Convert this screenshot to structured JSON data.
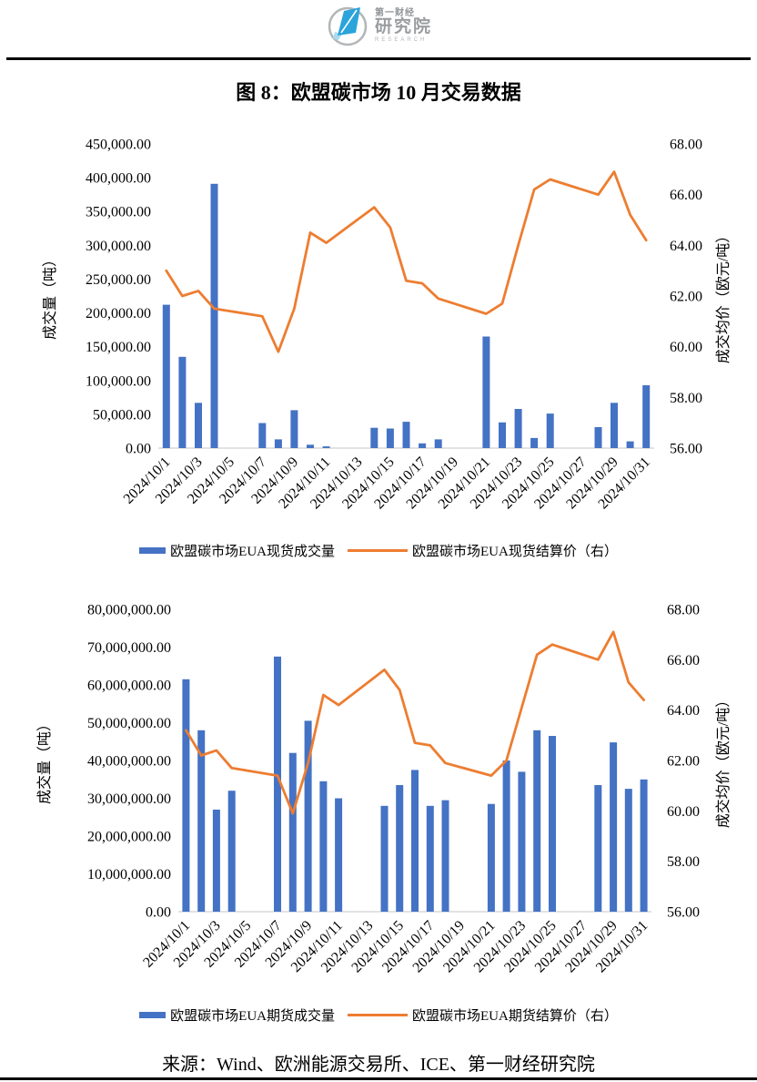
{
  "page": {
    "logo": {
      "line1": "第一财经",
      "line2": "研究院",
      "line3": "RESEARCH"
    },
    "title": "图 8：欧盟碳市场 10 月交易数据",
    "source": "来源：Wind、欧洲能源交易所、ICE、第一财经研究院"
  },
  "colors": {
    "bar": "#4472C4",
    "line": "#ED7D31",
    "axis_line": "#D9D9D9",
    "text": "#000000",
    "logo_blue": "#2BA3DB",
    "logo_light_blue": "#A9DCF2",
    "logo_gray": "#B3B7BA"
  },
  "chart_data": [
    {
      "type": "bar",
      "subtype": "bar+line-combo",
      "grid": false,
      "legend_position": "bottom",
      "categories": [
        "2024/10/1",
        "2024/10/2",
        "2024/10/3",
        "2024/10/4",
        "2024/10/5",
        "2024/10/6",
        "2024/10/7",
        "2024/10/8",
        "2024/10/9",
        "2024/10/10",
        "2024/10/11",
        "2024/10/12",
        "2024/10/13",
        "2024/10/14",
        "2024/10/15",
        "2024/10/16",
        "2024/10/17",
        "2024/10/18",
        "2024/10/19",
        "2024/10/20",
        "2024/10/21",
        "2024/10/22",
        "2024/10/23",
        "2024/10/24",
        "2024/10/25",
        "2024/10/26",
        "2024/10/27",
        "2024/10/28",
        "2024/10/29",
        "2024/10/30",
        "2024/10/31"
      ],
      "x_tick_labels": [
        "2024/10/1",
        "2024/10/3",
        "2024/10/5",
        "2024/10/7",
        "2024/10/9",
        "2024/10/11",
        "2024/10/13",
        "2024/10/15",
        "2024/10/17",
        "2024/10/19",
        "2024/10/21",
        "2024/10/23",
        "2024/10/25",
        "2024/10/27",
        "2024/10/29",
        "2024/10/31"
      ],
      "x_tick_every": 2,
      "left_axis": {
        "label": "成交量（吨）",
        "min": 0,
        "max": 450000,
        "step": 50000,
        "tick_format": "thousands_2dp"
      },
      "right_axis": {
        "label": "成交均价（欧元/吨）",
        "min": 56,
        "max": 68,
        "step": 2,
        "tick_format": "2dp"
      },
      "series": [
        {
          "name": "欧盟碳市场EUA现货成交量",
          "kind": "bar",
          "axis": "left",
          "values": [
            212000,
            135000,
            67000,
            391000,
            null,
            null,
            37000,
            13000,
            56000,
            5000,
            2500,
            null,
            null,
            30000,
            29000,
            39000,
            7000,
            13000,
            null,
            null,
            165000,
            38000,
            58000,
            15000,
            51000,
            null,
            null,
            31000,
            67000,
            10000,
            93000
          ]
        },
        {
          "name": "欧盟碳市场EUA现货结算价（右）",
          "kind": "line",
          "axis": "right",
          "values": [
            63.0,
            62.0,
            62.2,
            61.5,
            null,
            null,
            61.2,
            59.8,
            61.5,
            64.5,
            64.1,
            null,
            null,
            65.5,
            64.7,
            62.6,
            62.5,
            61.9,
            null,
            null,
            61.3,
            61.7,
            64.0,
            66.2,
            66.6,
            null,
            null,
            66.0,
            66.9,
            65.2,
            64.2
          ]
        }
      ]
    },
    {
      "type": "bar",
      "subtype": "bar+line-combo",
      "grid": false,
      "legend_position": "bottom",
      "categories": [
        "2024/10/1",
        "2024/10/2",
        "2024/10/3",
        "2024/10/4",
        "2024/10/5",
        "2024/10/6",
        "2024/10/7",
        "2024/10/8",
        "2024/10/9",
        "2024/10/10",
        "2024/10/11",
        "2024/10/12",
        "2024/10/13",
        "2024/10/14",
        "2024/10/15",
        "2024/10/16",
        "2024/10/17",
        "2024/10/18",
        "2024/10/19",
        "2024/10/20",
        "2024/10/21",
        "2024/10/22",
        "2024/10/23",
        "2024/10/24",
        "2024/10/25",
        "2024/10/26",
        "2024/10/27",
        "2024/10/28",
        "2024/10/29",
        "2024/10/30",
        "2024/10/31"
      ],
      "x_tick_labels": [
        "2024/10/1",
        "2024/10/3",
        "2024/10/5",
        "2024/10/7",
        "2024/10/9",
        "2024/10/11",
        "2024/10/13",
        "2024/10/15",
        "2024/10/17",
        "2024/10/19",
        "2024/10/21",
        "2024/10/23",
        "2024/10/25",
        "2024/10/27",
        "2024/10/29",
        "2024/10/31"
      ],
      "x_tick_every": 2,
      "left_axis": {
        "label": "成交量（吨）",
        "min": 0,
        "max": 80000000,
        "step": 10000000,
        "tick_format": "thousands_2dp"
      },
      "right_axis": {
        "label": "成交均价（欧元/吨）",
        "min": 56,
        "max": 68,
        "step": 2,
        "tick_format": "2dp"
      },
      "series": [
        {
          "name": "欧盟碳市场EUA期货成交量",
          "kind": "bar",
          "axis": "left",
          "values": [
            61500000,
            48000000,
            27000000,
            32000000,
            null,
            null,
            67500000,
            42000000,
            50500000,
            34500000,
            30000000,
            null,
            null,
            28000000,
            33500000,
            37500000,
            28000000,
            29500000,
            null,
            null,
            28500000,
            40000000,
            37000000,
            48000000,
            46500000,
            null,
            null,
            33500000,
            44800000,
            32500000,
            35000000
          ]
        },
        {
          "name": "欧盟碳市场EUA期货结算价（右）",
          "kind": "line",
          "axis": "right",
          "values": [
            63.2,
            62.2,
            62.4,
            61.7,
            null,
            null,
            61.4,
            59.9,
            61.9,
            64.6,
            64.2,
            null,
            null,
            65.6,
            64.8,
            62.7,
            62.6,
            61.9,
            null,
            null,
            61.4,
            62.0,
            64.1,
            66.2,
            66.6,
            null,
            null,
            66.0,
            67.1,
            65.1,
            64.4
          ]
        }
      ]
    }
  ]
}
